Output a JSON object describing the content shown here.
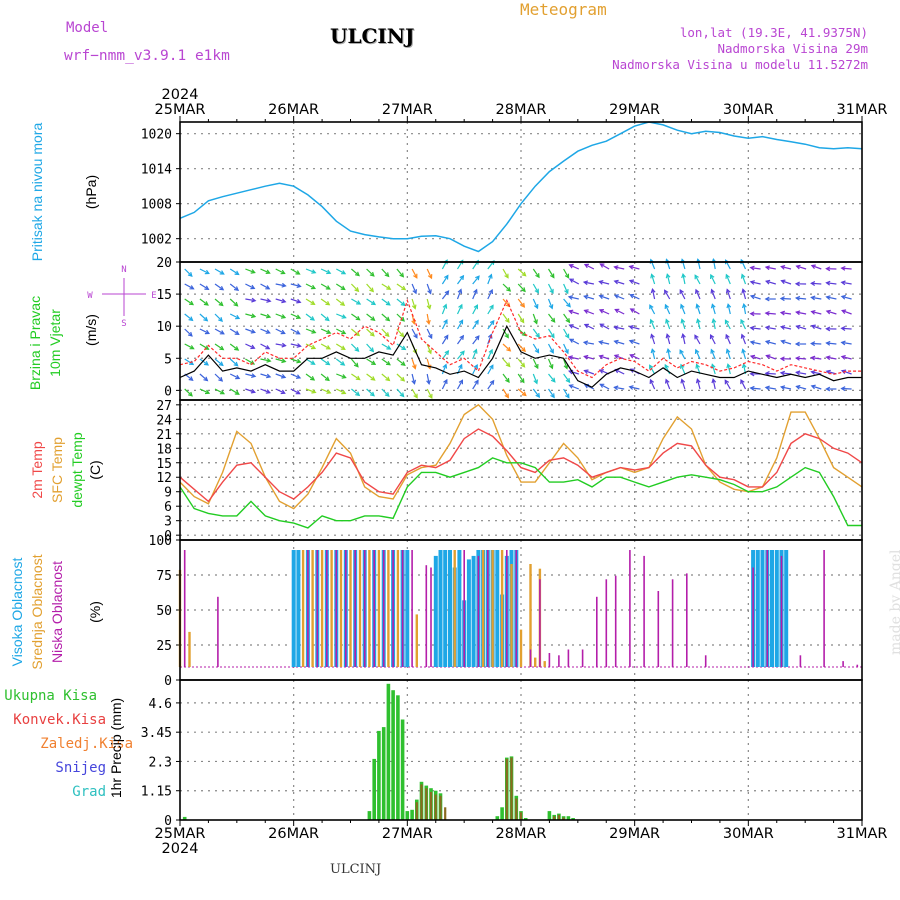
{
  "header": {
    "model_label": "Model",
    "model_name": "wrf−nmm_v3.9.1  e1km",
    "station": "ULCINJ",
    "product": "Meteogram",
    "lonlat": "lon,lat (19.3E, 41.9375N)",
    "elevation": "Nadmorska Visina 29m",
    "model_elevation": "Nadmorska Visina u modelu 11.5272m",
    "footer_station": "ULCINJ",
    "credit": "made by Angel"
  },
  "x_axis": {
    "year": "2024",
    "date_labels": [
      "25MAR",
      "26MAR",
      "27MAR",
      "28MAR",
      "29MAR",
      "30MAR",
      "31MAR"
    ],
    "range_hours": [
      0,
      144
    ]
  },
  "colors": {
    "pressure": "#1ea7e6",
    "wind_speed": "#000000",
    "wind_gust": "#ff2a2a",
    "t2m": "#f04848",
    "sfc": "#e2a030",
    "dewpt": "#22cc22",
    "cloud_high": "#1ea7e6",
    "cloud_mid": "#e2a030",
    "cloud_low": "#b41eaa",
    "rain_total": "#2fc02f",
    "rain_conv": "#e84040",
    "rain_frozen": "#f08030",
    "snow": "#4646dc",
    "hail": "#2ec0c0",
    "compass": "#b946d2",
    "frame": "#000000",
    "grid": "#888888"
  },
  "chart_data": [
    {
      "type": "line",
      "ylabel": "Pritisak na nivou mora",
      "unit": "(hPa)",
      "y_ticks": [
        1002,
        1008,
        1014,
        1020
      ],
      "ylim": [
        998,
        1022
      ],
      "series": [
        {
          "x": [
            0,
            3,
            6,
            9,
            12,
            15,
            18,
            21,
            24,
            27,
            30,
            33,
            36,
            39,
            42,
            45,
            48,
            51,
            54,
            57,
            60,
            63,
            66,
            69,
            72,
            75,
            78,
            81,
            84,
            87,
            90,
            93,
            96,
            99,
            102,
            105,
            108,
            111,
            114,
            117,
            120,
            123,
            126,
            129,
            132,
            135,
            138,
            141,
            144
          ],
          "values": [
            1005.5,
            1006.5,
            1008.5,
            1009.2,
            1009.8,
            1010.4,
            1011.0,
            1011.5,
            1011.0,
            1009.5,
            1007.5,
            1005.0,
            1003.3,
            1002.7,
            1002.3,
            1002.0,
            1002.0,
            1002.4,
            1002.5,
            1002.0,
            1000.7,
            999.8,
            1001.5,
            1004.5,
            1008.0,
            1011.0,
            1013.5,
            1015.3,
            1017.0,
            1018.0,
            1018.7,
            1020.0,
            1021.3,
            1022.0,
            1021.5,
            1020.6,
            1020.0,
            1020.4,
            1020.2,
            1019.6,
            1019.2,
            1019.5,
            1019.0,
            1018.6,
            1018.2,
            1017.6,
            1017.4,
            1017.6,
            1017.4
          ]
        }
      ]
    },
    {
      "type": "line",
      "ylabel": "10m Vjetar Brzina i Pravac",
      "unit": "(m/s)",
      "compass_labels": [
        "N",
        "W",
        "E",
        "S"
      ],
      "y_ticks": [
        0,
        5,
        10,
        15,
        20
      ],
      "ylim": [
        -1.5,
        20
      ],
      "series": [
        {
          "name": "speed",
          "x": [
            0,
            3,
            6,
            9,
            12,
            15,
            18,
            21,
            24,
            27,
            30,
            33,
            36,
            39,
            42,
            45,
            48,
            51,
            54,
            57,
            60,
            63,
            66,
            69,
            72,
            75,
            78,
            81,
            84,
            87,
            90,
            93,
            96,
            99,
            102,
            105,
            108,
            111,
            114,
            117,
            120,
            123,
            126,
            129,
            132,
            135,
            138,
            141,
            144
          ],
          "values": [
            2,
            3,
            5.5,
            3,
            3.5,
            3,
            4,
            3,
            3,
            5,
            5,
            6,
            5,
            5,
            6,
            5.5,
            9,
            4,
            3.5,
            2.5,
            3,
            2,
            5,
            10,
            6,
            5,
            5.5,
            5,
            1.5,
            0.5,
            2.5,
            3.5,
            3,
            2,
            3.5,
            2,
            3,
            2.5,
            2,
            2,
            3,
            2.5,
            2,
            2.5,
            2,
            2.5,
            1.5,
            2,
            2
          ]
        },
        {
          "name": "gust",
          "x": [
            0,
            3,
            6,
            9,
            12,
            15,
            18,
            21,
            24,
            27,
            30,
            33,
            36,
            39,
            42,
            45,
            48,
            51,
            54,
            57,
            60,
            63,
            66,
            69,
            72,
            75,
            78,
            81,
            84,
            87,
            90,
            93,
            96,
            99,
            102,
            105,
            108,
            111,
            114,
            117,
            120,
            123,
            126,
            129,
            132,
            135,
            138,
            141,
            144
          ],
          "values": [
            4,
            4.5,
            7,
            5,
            5,
            4,
            6,
            5,
            5,
            7,
            8,
            9,
            8,
            10,
            9,
            7,
            14,
            8,
            6,
            4,
            5,
            3,
            9,
            14,
            9,
            8,
            8.5,
            6,
            3,
            2,
            4,
            5,
            4.5,
            3,
            5,
            3.5,
            4.5,
            4,
            3,
            3.5,
            4.5,
            4,
            3,
            4,
            3.5,
            3,
            2.5,
            3,
            3
          ]
        }
      ]
    },
    {
      "type": "line",
      "ylabel_lines": [
        "2m Temp",
        "SFC Temp",
        "dewpt Temp"
      ],
      "unit": "(C)",
      "y_ticks": [
        0,
        3,
        6,
        9,
        12,
        15,
        18,
        21,
        24,
        27
      ],
      "ylim": [
        -1,
        28
      ],
      "series": [
        {
          "name": "2m Temp",
          "x": [
            0,
            3,
            6,
            9,
            12,
            15,
            18,
            21,
            24,
            27,
            30,
            33,
            36,
            39,
            42,
            45,
            48,
            51,
            54,
            57,
            60,
            63,
            66,
            69,
            72,
            75,
            78,
            81,
            84,
            87,
            90,
            93,
            96,
            99,
            102,
            105,
            108,
            111,
            114,
            117,
            120,
            123,
            126,
            129,
            132,
            135,
            138,
            141,
            144
          ],
          "values": [
            12,
            9.5,
            7,
            11,
            14.5,
            15,
            12,
            9,
            7.5,
            10,
            13,
            17,
            16,
            11,
            9,
            8.5,
            13,
            14.5,
            14,
            15.5,
            20,
            22,
            20.5,
            17.5,
            14,
            13,
            15.5,
            16,
            14.5,
            12,
            13,
            14,
            13.5,
            14,
            17,
            19,
            18.5,
            14.5,
            12,
            11.5,
            10,
            10,
            13,
            19,
            21,
            20,
            18,
            17,
            15
          ]
        },
        {
          "name": "SFC Temp",
          "x": [
            0,
            3,
            6,
            9,
            12,
            15,
            18,
            21,
            24,
            27,
            30,
            33,
            36,
            39,
            42,
            45,
            48,
            51,
            54,
            57,
            60,
            63,
            66,
            69,
            72,
            75,
            78,
            81,
            84,
            87,
            90,
            93,
            96,
            99,
            102,
            105,
            108,
            111,
            114,
            117,
            120,
            123,
            126,
            129,
            132,
            135,
            138,
            141,
            144
          ],
          "values": [
            11,
            8,
            6.5,
            13,
            21.5,
            19,
            12,
            7,
            5.5,
            8.5,
            14,
            20,
            17,
            10,
            8,
            7.5,
            12.5,
            14,
            14.5,
            19,
            25,
            27,
            24,
            16.5,
            11,
            11,
            15,
            19,
            16,
            11.5,
            13,
            14,
            13,
            14,
            20,
            24.5,
            22,
            14.5,
            11,
            9.5,
            9,
            10,
            16,
            25.5,
            25.5,
            20,
            14,
            12,
            10
          ]
        },
        {
          "name": "dewpt Temp",
          "x": [
            0,
            3,
            6,
            9,
            12,
            15,
            18,
            21,
            24,
            27,
            30,
            33,
            36,
            39,
            42,
            45,
            48,
            51,
            54,
            57,
            60,
            63,
            66,
            69,
            72,
            75,
            78,
            81,
            84,
            87,
            90,
            93,
            96,
            99,
            102,
            105,
            108,
            111,
            114,
            117,
            120,
            123,
            126,
            129,
            132,
            135,
            138,
            141,
            144
          ],
          "values": [
            10,
            5.5,
            4.5,
            4,
            4,
            7,
            4,
            3,
            2.5,
            1.5,
            4,
            3,
            3,
            4,
            4,
            3.5,
            10,
            13,
            13,
            12,
            13,
            14,
            16,
            15,
            15,
            14,
            11,
            11,
            11.5,
            10,
            12,
            12,
            11,
            10,
            11,
            12,
            12.5,
            12,
            11.5,
            10.5,
            9,
            9,
            10,
            12,
            14,
            13,
            8,
            2,
            2
          ]
        }
      ]
    },
    {
      "type": "bar",
      "ylabel_lines": [
        "Visoka Oblacnost",
        "Srednja Oblacnost",
        "Niska Oblacnost"
      ],
      "unit": "(%)",
      "y_ticks": [
        0,
        25,
        50,
        75,
        100
      ],
      "ylim": [
        0,
        100
      ],
      "series": [
        {
          "name": "Visoka Oblacnost",
          "x": [
            24,
            25,
            27,
            29,
            31,
            33,
            35,
            37,
            39,
            41,
            43,
            45,
            47,
            48,
            54,
            55,
            56,
            57,
            58,
            59,
            60,
            61,
            62,
            63,
            64,
            65,
            66,
            67,
            68,
            69,
            70,
            71,
            121,
            122,
            123,
            124,
            125,
            126,
            127,
            128
          ],
          "values": [
            100,
            100,
            100,
            100,
            100,
            100,
            100,
            100,
            100,
            100,
            100,
            100,
            100,
            100,
            95,
            100,
            100,
            100,
            85,
            100,
            57,
            92,
            95,
            100,
            100,
            100,
            100,
            100,
            62,
            95,
            100,
            100,
            100,
            100,
            100,
            100,
            100,
            100,
            100,
            100
          ]
        },
        {
          "name": "Srednja Oblacnost",
          "x": [
            0,
            2,
            26,
            28,
            30,
            32,
            34,
            36,
            38,
            40,
            42,
            44,
            46,
            50,
            58,
            64,
            66,
            68,
            70,
            72,
            74,
            75,
            76,
            77
          ],
          "values": [
            83,
            30,
            100,
            100,
            100,
            100,
            100,
            100,
            100,
            100,
            100,
            100,
            100,
            45,
            100,
            100,
            100,
            100,
            88,
            32,
            88,
            8,
            84,
            5
          ]
        },
        {
          "name": "Niska Oblacnost",
          "x": [
            1,
            8,
            27,
            29,
            31,
            33,
            35,
            37,
            39,
            41,
            43,
            45,
            47,
            49,
            52,
            53,
            60,
            63,
            65,
            69,
            71,
            74,
            76,
            78,
            80,
            82,
            85,
            88,
            90,
            92,
            95,
            98,
            101,
            104,
            107,
            111,
            121,
            124,
            127,
            131,
            136,
            140,
            143
          ],
          "values": [
            100,
            60,
            100,
            100,
            100,
            100,
            100,
            100,
            100,
            100,
            100,
            100,
            100,
            100,
            87,
            85,
            100,
            95,
            100,
            100,
            100,
            15,
            75,
            12,
            10,
            15,
            15,
            60,
            75,
            78,
            100,
            95,
            65,
            75,
            80,
            10,
            85,
            100,
            95,
            10,
            100,
            5,
            2
          ]
        }
      ]
    },
    {
      "type": "bar",
      "ylabel_lines": [
        "Ukupna Kisa",
        "Konvek.Kisa",
        "Zaledj.Kisa",
        "Snijeg",
        "Grad"
      ],
      "ylabel": "1hr Precip",
      "unit": "(mm)",
      "y_ticks": [
        0,
        1.15,
        2.3,
        3.45,
        4.6
      ],
      "ylim": [
        0,
        5.5
      ],
      "series": [
        {
          "name": "Ukupna Kisa",
          "x": [
            1,
            40,
            41,
            42,
            43,
            44,
            45,
            46,
            47,
            48,
            49,
            50,
            51,
            52,
            53,
            54,
            55,
            67,
            68,
            69,
            70,
            71,
            72,
            73,
            78,
            79,
            80,
            81,
            82,
            83
          ],
          "values": [
            0.12,
            0.35,
            2.4,
            3.5,
            3.65,
            5.35,
            5.1,
            4.9,
            3.95,
            0.35,
            0.4,
            0.8,
            1.5,
            1.35,
            1.25,
            1.15,
            1.05,
            0.15,
            0.5,
            2.45,
            2.5,
            0.95,
            0.35,
            0.08,
            0.35,
            0.2,
            0.25,
            0.15,
            0.15,
            0.08
          ]
        },
        {
          "name": "Konvek.Kisa",
          "x": [
            50,
            51,
            52,
            53,
            54,
            55,
            56,
            69,
            70,
            71,
            72,
            79,
            80,
            81
          ],
          "values": [
            0.7,
            1.4,
            1.25,
            1.1,
            1.0,
            0.95,
            0.5,
            2.4,
            2.45,
            0.85,
            0.3,
            0.15,
            0.2,
            0.1
          ]
        }
      ]
    }
  ]
}
